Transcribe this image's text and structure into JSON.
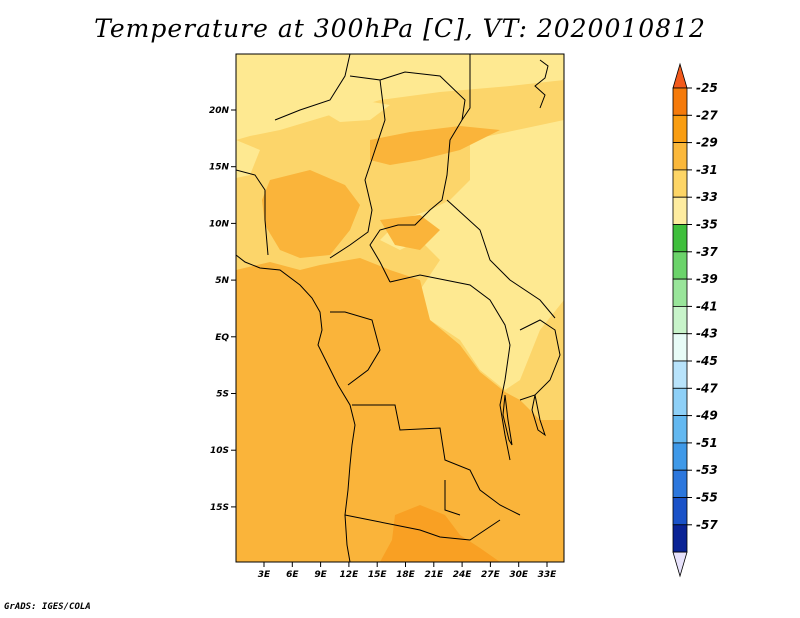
{
  "title": "Temperature at 300hPa [C], VT: 2020010812",
  "credit": "GrADS: IGES/COLA",
  "map": {
    "lon_ticks": [
      "3E",
      "6E",
      "9E",
      "12E",
      "15E",
      "18E",
      "21E",
      "24E",
      "27E",
      "30E",
      "33E"
    ],
    "lat_ticks": [
      "20N",
      "15N",
      "10N",
      "5N",
      "EQ",
      "5S",
      "10S",
      "15S"
    ],
    "fill_colors": {
      "light": "#fee991",
      "mid": "#fcd56a",
      "deep": "#fab43a",
      "warm": "#f9a023"
    }
  },
  "colorbar": {
    "labels": [
      "-25",
      "-27",
      "-29",
      "-31",
      "-33",
      "-35",
      "-37",
      "-39",
      "-41",
      "-43",
      "-45",
      "-47",
      "-49",
      "-51",
      "-53",
      "-55",
      "-57"
    ],
    "top_arrow_color": "#f25a1c",
    "bottom_arrow_color": "#e7e2fb",
    "segment_colors": [
      "#f57a0a",
      "#f99d11",
      "#fbb83b",
      "#fdd566",
      "#feeca0",
      "#3fbf3c",
      "#6bd36a",
      "#99e59a",
      "#c8f4ca",
      "#e8fcf7",
      "#b8e3fb",
      "#8ed0f7",
      "#63b8f0",
      "#3f99e8",
      "#2c77dd",
      "#1a52c8",
      "#0a2395"
    ]
  }
}
